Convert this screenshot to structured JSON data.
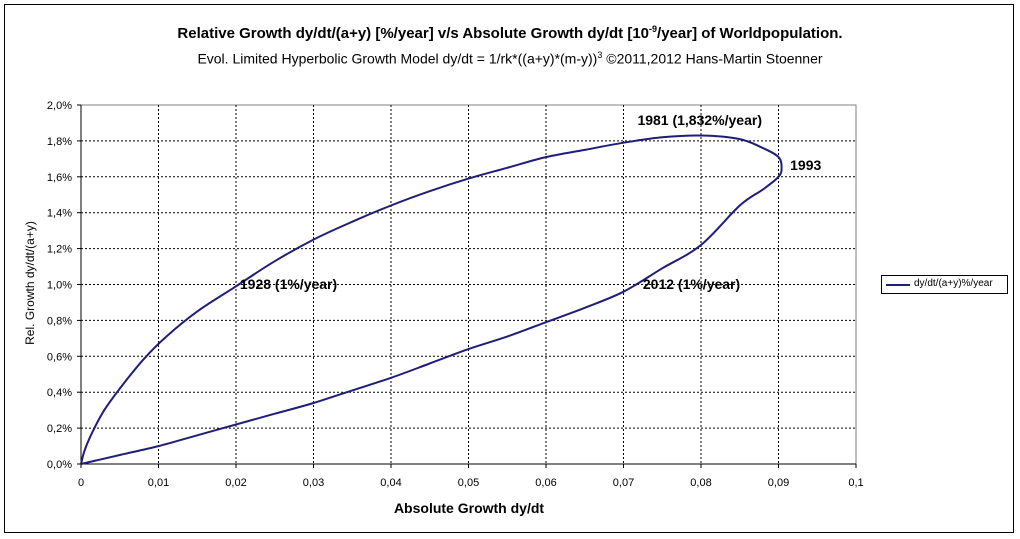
{
  "title_main": "Relative Growth dy/dt/(a+y) [%/year]  v/s  Absolute Growth dy/dt [10",
  "title_sup": "-9",
  "title_end": "/year] of Worldpopulation.",
  "subtitle_main": "Evol. Limited Hyperbolic Growth Model dy/dt = 1/rk*((a+y)*(m-y))",
  "subtitle_sup": "3",
  "subtitle_end": "  ©2011,2012 Hans-Martin Stoenner",
  "chart_data": {
    "type": "line",
    "title": "Relative Growth dy/dt/(a+y) [%/year]  v/s  Absolute Growth dy/dt [10^-9/year] of Worldpopulation.",
    "subtitle": "Evol. Limited Hyperbolic Growth Model dy/dt = 1/rk*((a+y)*(m-y))^3  ©2011,2012 Hans-Martin Stoenner",
    "xlabel": "Absolute Growth dy/dt",
    "ylabel": "Rel. Growth dy/dt/(a+y)",
    "xlim": [
      0,
      0.1
    ],
    "ylim": [
      0,
      0.02
    ],
    "xticks": [
      "0",
      "0,01",
      "0,02",
      "0,03",
      "0,04",
      "0,05",
      "0,06",
      "0,07",
      "0,08",
      "0,09",
      "0,1"
    ],
    "yticks": [
      "0,0%",
      "0,2%",
      "0,4%",
      "0,6%",
      "0,8%",
      "1,0%",
      "1,2%",
      "1,4%",
      "1,6%",
      "1,8%",
      "2,0%"
    ],
    "grid": true,
    "legend_position": "right",
    "series": [
      {
        "name": "dy/dt/(a+y)%/year",
        "color": "#1f1f7a",
        "x": [
          0,
          0.0005,
          0.0015,
          0.003,
          0.005,
          0.008,
          0.011,
          0.015,
          0.02,
          0.025,
          0.03,
          0.035,
          0.04,
          0.045,
          0.05,
          0.055,
          0.06,
          0.065,
          0.07,
          0.075,
          0.08,
          0.085,
          0.088,
          0.09,
          0.0904,
          0.09,
          0.088,
          0.085,
          0.08,
          0.075,
          0.07,
          0.065,
          0.06,
          0.055,
          0.05,
          0.045,
          0.04,
          0.035,
          0.03,
          0.025,
          0.02,
          0.015,
          0.01,
          0.005,
          0.002,
          0
        ],
        "y": [
          0,
          0.0008,
          0.0018,
          0.003,
          0.0042,
          0.0058,
          0.0071,
          0.0085,
          0.0099,
          0.0113,
          0.0125,
          0.0135,
          0.0144,
          0.0152,
          0.0159,
          0.0165,
          0.0171,
          0.0175,
          0.0179,
          0.0182,
          0.0183,
          0.0181,
          0.0176,
          0.0171,
          0.0165,
          0.016,
          0.0153,
          0.0144,
          0.0122,
          0.0109,
          0.0096,
          0.0087,
          0.0079,
          0.0071,
          0.0064,
          0.0056,
          0.0048,
          0.0041,
          0.0034,
          0.0028,
          0.0022,
          0.0016,
          0.001,
          0.0005,
          0.0002,
          0
        ]
      }
    ],
    "annotations": [
      {
        "text": "1928 (1%/year)",
        "x": 0.0205,
        "y": 0.01
      },
      {
        "text": "1981 (1,832%/year)",
        "x": 0.0718,
        "y": 0.0191
      },
      {
        "text": "1993",
        "x": 0.0915,
        "y": 0.0166
      },
      {
        "text": "2012 (1%/year)",
        "x": 0.0725,
        "y": 0.01
      }
    ]
  }
}
